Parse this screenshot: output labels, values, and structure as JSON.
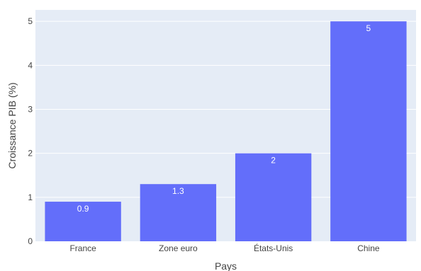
{
  "chart_data": {
    "type": "bar",
    "categories": [
      "France",
      "Zone euro",
      "États-Unis",
      "Chine"
    ],
    "values": [
      0.9,
      1.3,
      2,
      5
    ],
    "data_labels": [
      "0.9",
      "1.3",
      "2",
      "5"
    ],
    "title": "",
    "xlabel": "Pays",
    "ylabel": "Croissance PIB (%)",
    "ylim": [
      0,
      5.26
    ],
    "yticks": [
      0,
      1,
      2,
      3,
      4,
      5
    ],
    "ytick_labels": [
      "0",
      "1",
      "2",
      "3",
      "4",
      "5"
    ],
    "grid": true,
    "colors": {
      "bar": "#636efa",
      "plot_bg": "#e5ecf6",
      "grid": "#ffffff"
    }
  }
}
